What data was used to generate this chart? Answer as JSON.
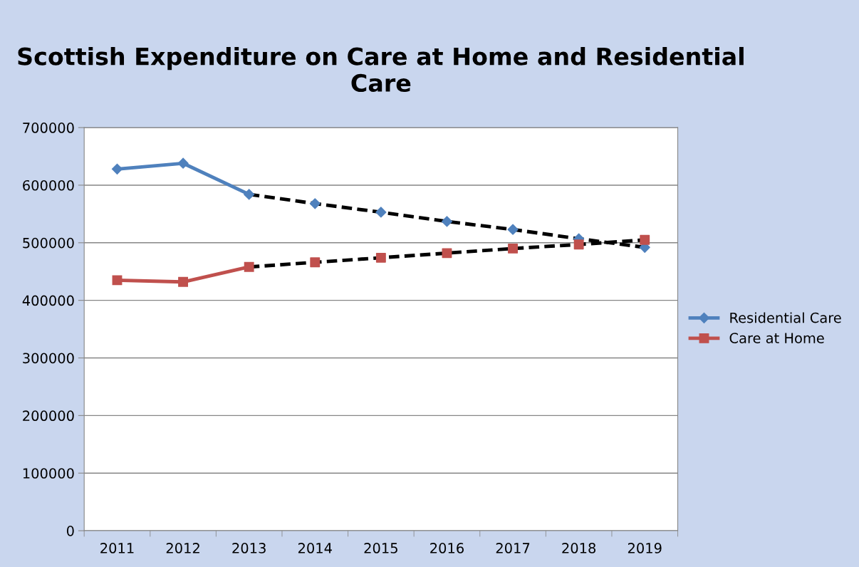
{
  "chart_data": {
    "type": "line",
    "title": "Scottish Expenditure on Care at Home and Residential Care",
    "categories": [
      "2011",
      "2012",
      "2013",
      "2014",
      "2015",
      "2016",
      "2017",
      "2018",
      "2019"
    ],
    "series": [
      {
        "name": "Residential Care",
        "color": "#4f81bd",
        "marker": "diamond",
        "values": [
          628000,
          638000,
          584000,
          null,
          null,
          null,
          null,
          null,
          null
        ]
      },
      {
        "name": "Care at Home",
        "color": "#c0504d",
        "marker": "square",
        "values": [
          435000,
          432000,
          458000,
          null,
          null,
          null,
          null,
          null,
          null
        ]
      },
      {
        "type": "line",
        "color": "#000000",
        "line_style": "dashed",
        "marker": "none",
        "values": [
          null,
          null,
          584000,
          568000,
          553000,
          537000,
          523000,
          507000,
          492000
        ]
      },
      {
        "type": "line",
        "color": "#000000",
        "line_style": "dashed",
        "marker": "none",
        "values": [
          null,
          null,
          458000,
          466000,
          474000,
          482000,
          490000,
          497000,
          505000
        ]
      },
      {
        "type": "scatter",
        "color": "#4f81bd",
        "marker": "diamond",
        "values": [
          null,
          null,
          null,
          568000,
          553000,
          537000,
          523000,
          507000,
          492000
        ]
      },
      {
        "type": "scatter",
        "color": "#c0504d",
        "marker": "square",
        "values": [
          null,
          null,
          null,
          466000,
          474000,
          482000,
          490000,
          497000,
          505000
        ]
      }
    ],
    "ylim": [
      0,
      700000
    ],
    "yticks": [
      0,
      100000,
      200000,
      300000,
      400000,
      500000,
      600000,
      700000
    ],
    "grid": "y",
    "legend": "right"
  }
}
